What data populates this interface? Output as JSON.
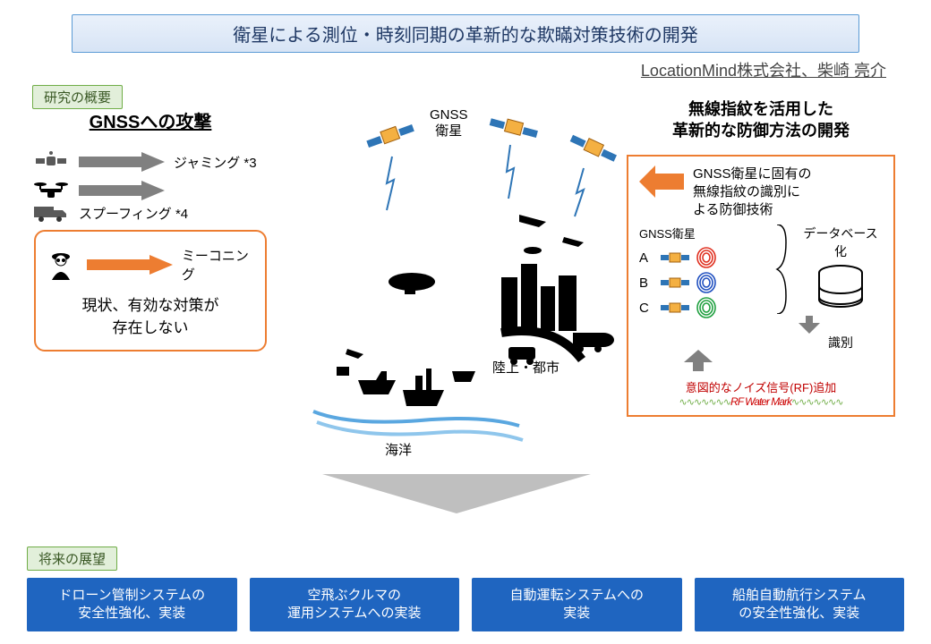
{
  "title": "衛星による測位・時刻同期の革新的な欺瞞対策技術の開発",
  "company": "LocationMind株式会社、柴崎 亮介",
  "section_overview_tag": "研究の概要",
  "left": {
    "title": "GNSSへの攻撃",
    "attacks": {
      "jamming": "ジャミング *3",
      "spoofing": "スプーフィング *4",
      "meaconing": "ミーコニング"
    },
    "meaconing_note_l1": "現状、有効な対策が",
    "meaconing_note_l2": "存在しない"
  },
  "center": {
    "gnss_sat_l1": "GNSS",
    "gnss_sat_l2": "衛星",
    "land_city": "陸上・都市",
    "ocean": "海洋"
  },
  "right": {
    "title_l1": "無線指紋を活用した",
    "title_l2": "革新的な防御方法の開発",
    "defense_l1": "GNSS衛星に固有の",
    "defense_l2": "無線指紋の識別に",
    "defense_l3": "よる防御技術",
    "sat_header": "GNSS衛星",
    "sat_a": "A",
    "sat_b": "B",
    "sat_c": "C",
    "db_label": "データベース化",
    "identify": "識別",
    "rf_note": "意図的なノイズ信号(RF)追加",
    "rf_watermark": "RF Water Mark"
  },
  "future": {
    "tag": "将来の展望",
    "boxes": [
      "ドローン管制システムの\n安全性強化、実装",
      "空飛ぶクルマの\n運用システムへの実装",
      "自動運転システムへの\n実装",
      "船舶自動航行システム\nの安全性強化、実装"
    ]
  },
  "colors": {
    "title_border": "#5b9bd5",
    "title_text": "#1f3864",
    "tag_border": "#70ad47",
    "tag_fill": "#e2efda",
    "orange": "#ed7d31",
    "gray_arrow": "#808080",
    "future_blue": "#1f65c0",
    "rf_red": "#c00000",
    "fp_red": "#e03020",
    "fp_blue": "#2050c0",
    "fp_green": "#20a040",
    "down_arrow": "#bfbfbf"
  }
}
